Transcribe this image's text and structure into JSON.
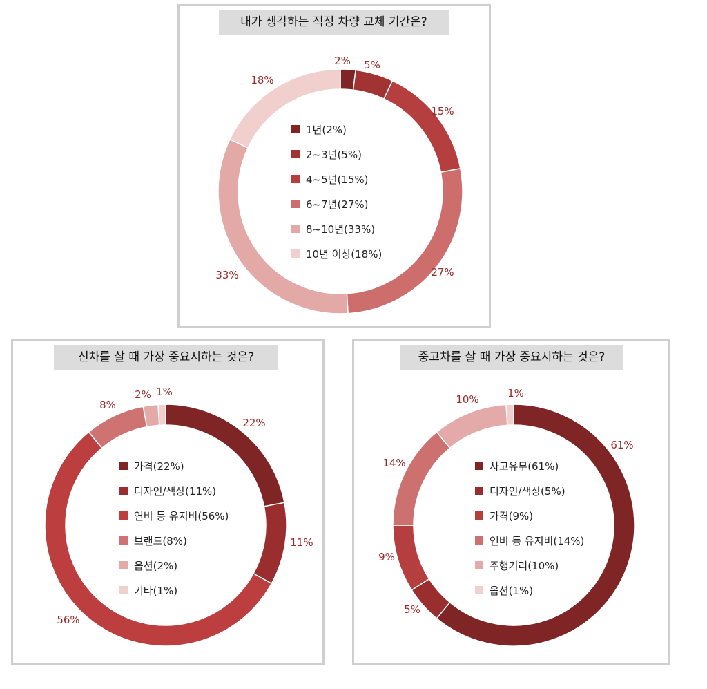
{
  "chart_data": [
    {
      "type": "pie",
      "donut": true,
      "title": "내가 생각하는 적정 차량 교체 기간은?",
      "categories": [
        "1년(2%)",
        "2~3년(5%)",
        "4~5년(15%)",
        "6~7년(27%)",
        "8~10년(33%)",
        "10년 이상(18%)"
      ],
      "values": [
        2,
        5,
        15,
        27,
        33,
        18
      ],
      "value_labels": [
        "2%",
        "5%",
        "15%",
        "27%",
        "33%",
        "18%"
      ],
      "colors": [
        "#7f2526",
        "#a23333",
        "#b53f3e",
        "#cd6e6c",
        "#e3a9a7",
        "#f0cfcd"
      ],
      "legend": "center"
    },
    {
      "type": "pie",
      "donut": true,
      "title": "신차를 살 때 가장 중요시하는 것은?",
      "categories": [
        "가격(22%)",
        "디자인/색상(11%)",
        "연비 등 유지비(56%)",
        "브랜드(8%)",
        "옵션(2%)",
        "기타(1%)"
      ],
      "values": [
        22,
        11,
        56,
        8,
        2,
        1
      ],
      "value_labels": [
        "22%",
        "11%",
        "56%",
        "8%",
        "2%",
        "1%"
      ],
      "colors": [
        "#7f2526",
        "#9a2e2e",
        "#bc3e3e",
        "#cf7372",
        "#e3aaa9",
        "#f0cfcd"
      ],
      "legend": "center"
    },
    {
      "type": "pie",
      "donut": true,
      "title": "중고차를 살 때 가장 중요시하는 것은?",
      "categories": [
        "사고유무(61%)",
        "디자인/색상(5%)",
        "가격(9%)",
        "연비 등 유지비(14%)",
        "주행거리(10%)",
        "옵션(1%)"
      ],
      "values": [
        61,
        5,
        9,
        14,
        10,
        1
      ],
      "value_labels": [
        "61%",
        "5%",
        "9%",
        "14%",
        "10%",
        "1%"
      ],
      "colors": [
        "#7f2526",
        "#9a2e2e",
        "#b53e3e",
        "#cd7170",
        "#e3aaa9",
        "#f0cfcd"
      ],
      "legend": "center"
    }
  ]
}
